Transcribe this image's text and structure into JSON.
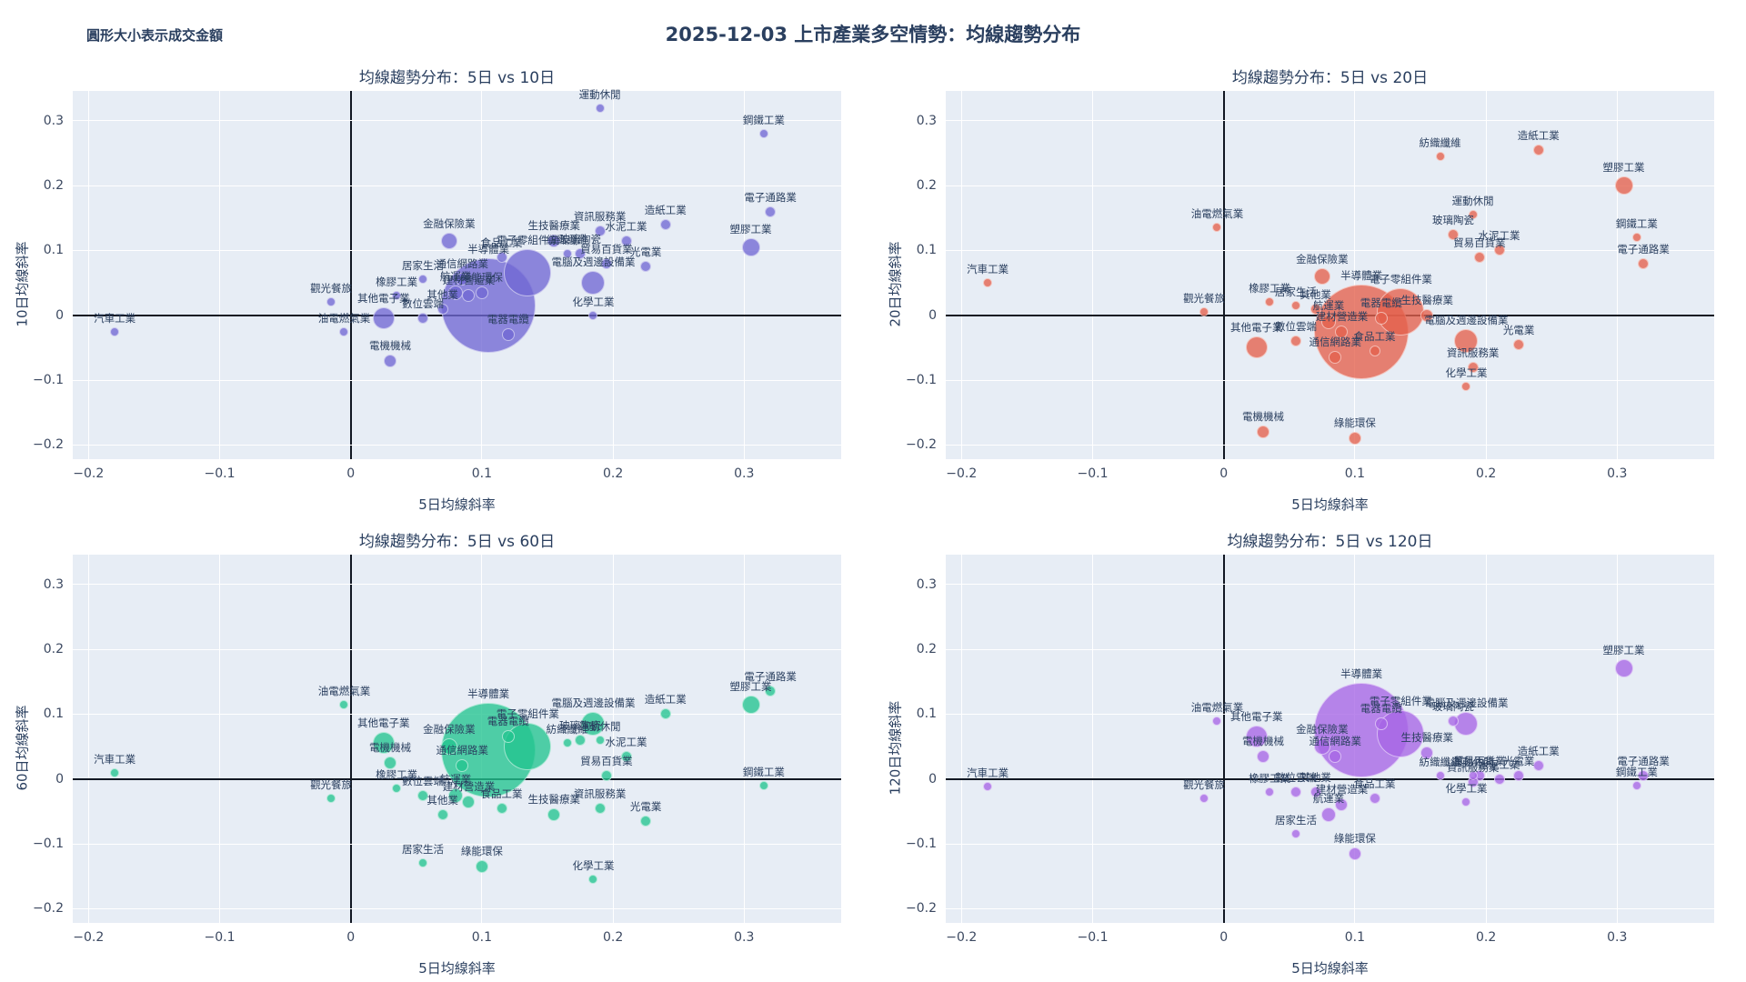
{
  "header": {
    "note": "圓形大小表示成交金額",
    "title": "2025-12-03 上市產業多空情勢：均線趨勢分布"
  },
  "chart_data": {
    "type": "scatter",
    "subtype": "bubble",
    "bubble_size_meaning": "成交金額",
    "xlabel": "5日均線斜率",
    "x_ticks": [
      -0.2,
      -0.1,
      0,
      0.1,
      0.2,
      0.3
    ],
    "y_ticks": [
      0.3,
      0.2,
      0.1,
      0,
      -0.1,
      -0.2
    ],
    "xlim": [
      -0.212,
      0.374
    ],
    "ylim": [
      -0.222,
      0.346
    ],
    "grid": true,
    "zerolines": true,
    "plot_bg": "#e7edf5",
    "panels": [
      {
        "id": "5v10",
        "title": "均線趨勢分布：5日 vs 10日",
        "ylabel": "10日均線斜率",
        "y_key": "y10",
        "color": "#7168d4"
      },
      {
        "id": "5v20",
        "title": "均線趨勢分布：5日 vs 20日",
        "ylabel": "20日均線斜率",
        "y_key": "y20",
        "color": "#e4604c"
      },
      {
        "id": "5v60",
        "title": "均線趨勢分布：5日 vs 60日",
        "ylabel": "60日均線斜率",
        "y_key": "y60",
        "color": "#22c48f"
      },
      {
        "id": "5v120",
        "title": "均線趨勢分布：5日 vs 120日",
        "ylabel": "120日均線斜率",
        "y_key": "y120",
        "color": "#a765e6"
      }
    ],
    "industries": [
      {
        "name": "半導體業",
        "x": 0.105,
        "y10": 0.015,
        "y20": -0.025,
        "y60": 0.045,
        "y120": 0.075,
        "size": 52
      },
      {
        "name": "電子零組件業",
        "x": 0.135,
        "y10": 0.065,
        "y20": 0.005,
        "y60": 0.05,
        "y120": 0.07,
        "size": 26
      },
      {
        "name": "電腦及週邊設備業",
        "x": 0.185,
        "y10": 0.05,
        "y20": -0.04,
        "y60": 0.085,
        "y120": 0.085,
        "size": 13
      },
      {
        "name": "金融保險業",
        "x": 0.075,
        "y10": 0.115,
        "y20": 0.06,
        "y60": 0.05,
        "y120": 0.05,
        "size": 9
      },
      {
        "name": "其他電子業",
        "x": 0.025,
        "y10": -0.005,
        "y20": -0.05,
        "y60": 0.055,
        "y120": 0.065,
        "size": 12
      },
      {
        "name": "電器電纜",
        "x": 0.12,
        "y10": -0.03,
        "y20": -0.005,
        "y60": 0.065,
        "y120": 0.085,
        "size": 7
      },
      {
        "name": "食品工業",
        "x": 0.115,
        "y10": 0.09,
        "y20": -0.055,
        "y60": -0.045,
        "y120": -0.03,
        "size": 6
      },
      {
        "name": "通信網路業",
        "x": 0.085,
        "y10": 0.055,
        "y20": -0.065,
        "y60": 0.02,
        "y120": 0.035,
        "size": 7
      },
      {
        "name": "航運業",
        "x": 0.08,
        "y10": 0.035,
        "y20": -0.01,
        "y60": -0.025,
        "y120": -0.055,
        "size": 8
      },
      {
        "name": "建材營造業",
        "x": 0.09,
        "y10": 0.03,
        "y20": -0.025,
        "y60": -0.035,
        "y120": -0.04,
        "size": 7
      },
      {
        "name": "綠能環保",
        "x": 0.1,
        "y10": 0.035,
        "y20": -0.19,
        "y60": -0.135,
        "y120": -0.115,
        "size": 7
      },
      {
        "name": "居家生活",
        "x": 0.055,
        "y10": 0.055,
        "y20": 0.015,
        "y60": -0.13,
        "y120": -0.085,
        "size": 5
      },
      {
        "name": "數位雲端",
        "x": 0.055,
        "y10": -0.005,
        "y20": -0.04,
        "y60": -0.025,
        "y120": -0.02,
        "size": 6
      },
      {
        "name": "其他業",
        "x": 0.07,
        "y10": 0.01,
        "y20": 0.01,
        "y60": -0.055,
        "y120": -0.02,
        "size": 6
      },
      {
        "name": "橡膠工業",
        "x": 0.035,
        "y10": 0.03,
        "y20": 0.02,
        "y60": -0.015,
        "y120": -0.02,
        "size": 5
      },
      {
        "name": "電機機械",
        "x": 0.03,
        "y10": -0.07,
        "y20": -0.18,
        "y60": 0.025,
        "y120": 0.035,
        "size": 7
      },
      {
        "name": "油電燃氣業",
        "x": -0.005,
        "y10": -0.025,
        "y20": 0.135,
        "y60": 0.115,
        "y120": 0.09,
        "size": 5
      },
      {
        "name": "觀光餐旅",
        "x": -0.015,
        "y10": 0.02,
        "y20": 0.005,
        "y60": -0.03,
        "y120": -0.03,
        "size": 5
      },
      {
        "name": "汽車工業",
        "x": -0.18,
        "y10": -0.025,
        "y20": 0.05,
        "y60": 0.01,
        "y120": -0.012,
        "size": 5
      },
      {
        "name": "生技醫療業",
        "x": 0.155,
        "y10": 0.115,
        "y20": 0.0,
        "y60": -0.055,
        "y120": 0.04,
        "size": 7
      },
      {
        "name": "紡織纖維",
        "x": 0.165,
        "y10": 0.095,
        "y20": 0.245,
        "y60": 0.055,
        "y120": 0.005,
        "size": 5
      },
      {
        "name": "玻璃陶瓷",
        "x": 0.175,
        "y10": 0.095,
        "y20": 0.125,
        "y60": 0.06,
        "y120": 0.09,
        "size": 6
      },
      {
        "name": "運動休閒",
        "x": 0.19,
        "y10": 0.32,
        "y20": 0.155,
        "y60": 0.06,
        "y120": 0.005,
        "size": 5
      },
      {
        "name": "貿易百貨業",
        "x": 0.195,
        "y10": 0.08,
        "y20": 0.09,
        "y60": 0.005,
        "y120": 0.005,
        "size": 6
      },
      {
        "name": "資訊服務業",
        "x": 0.19,
        "y10": 0.13,
        "y20": -0.08,
        "y60": -0.045,
        "y120": -0.005,
        "size": 6
      },
      {
        "name": "水泥工業",
        "x": 0.21,
        "y10": 0.115,
        "y20": 0.1,
        "y60": 0.035,
        "y120": 0.0,
        "size": 6
      },
      {
        "name": "化學工業",
        "x": 0.185,
        "y10": 0.0,
        "y20": -0.11,
        "y60": -0.155,
        "y120": -0.035,
        "size": 5
      },
      {
        "name": "光電業",
        "x": 0.225,
        "y10": 0.075,
        "y20": -0.045,
        "y60": -0.065,
        "y120": 0.005,
        "size": 6
      },
      {
        "name": "造紙工業",
        "x": 0.24,
        "y10": 0.14,
        "y20": 0.255,
        "y60": 0.1,
        "y120": 0.02,
        "size": 6
      },
      {
        "name": "塑膠工業",
        "x": 0.305,
        "y10": 0.105,
        "y20": 0.2,
        "y60": 0.115,
        "y120": 0.17,
        "size": 10
      },
      {
        "name": "電子通路業",
        "x": 0.32,
        "y10": 0.16,
        "y20": 0.08,
        "y60": 0.135,
        "y120": 0.005,
        "size": 6
      },
      {
        "name": "鋼鐵工業",
        "x": 0.315,
        "y10": 0.28,
        "y20": 0.12,
        "y60": -0.01,
        "y120": -0.01,
        "size": 5
      }
    ]
  }
}
